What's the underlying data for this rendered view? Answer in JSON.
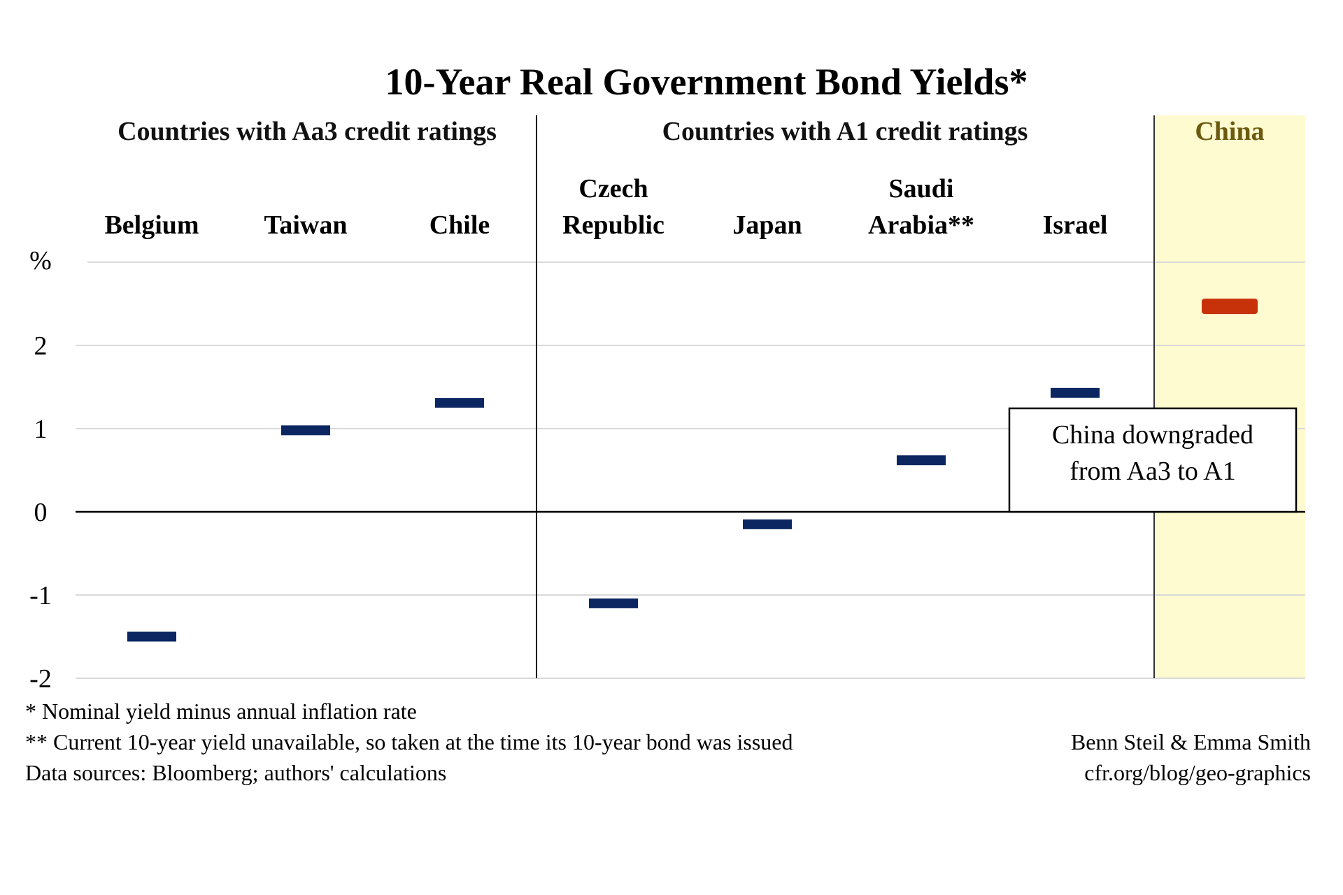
{
  "chart_data": {
    "type": "scatter",
    "title": "10-Year Real Government Bond Yields*",
    "ylabel": "%",
    "ylim": [
      -2,
      3
    ],
    "yticks": [
      -2,
      -1,
      0,
      1,
      2
    ],
    "grid": true,
    "groups": [
      {
        "label": "Countries with Aa3 credit ratings"
      },
      {
        "label": "Countries with A1 credit ratings"
      },
      {
        "label": "China"
      }
    ],
    "categories": [
      {
        "lines": [
          "Belgium"
        ],
        "value": -1.5,
        "group": 0
      },
      {
        "lines": [
          "Taiwan"
        ],
        "value": 0.98,
        "group": 0
      },
      {
        "lines": [
          "Chile"
        ],
        "value": 1.31,
        "group": 0
      },
      {
        "lines": [
          "Czech",
          "Republic"
        ],
        "value": -1.1,
        "group": 1
      },
      {
        "lines": [
          "Japan"
        ],
        "value": -0.15,
        "group": 1
      },
      {
        "lines": [
          "Saudi",
          "Arabia**"
        ],
        "value": 0.62,
        "group": 1
      },
      {
        "lines": [
          "Israel"
        ],
        "value": 1.43,
        "group": 1
      },
      {
        "lines": [],
        "value": 2.47,
        "group": 2
      }
    ],
    "annotation": {
      "lines": [
        "China downgraded",
        "from Aa3 to A1"
      ]
    }
  },
  "colors": {
    "marker": "#0b2660",
    "china_marker": "#c8320b",
    "china_band": "#fffbd0",
    "grid": "#d9d9d9"
  },
  "footnotes": [
    "* Nominal yield minus annual inflation rate",
    "** Current 10-year yield unavailable, so taken at the time its 10-year bond was issued",
    "Data sources: Bloomberg; authors' calculations"
  ],
  "credits": [
    "Benn Steil & Emma Smith",
    "cfr.org/blog/geo-graphics"
  ]
}
